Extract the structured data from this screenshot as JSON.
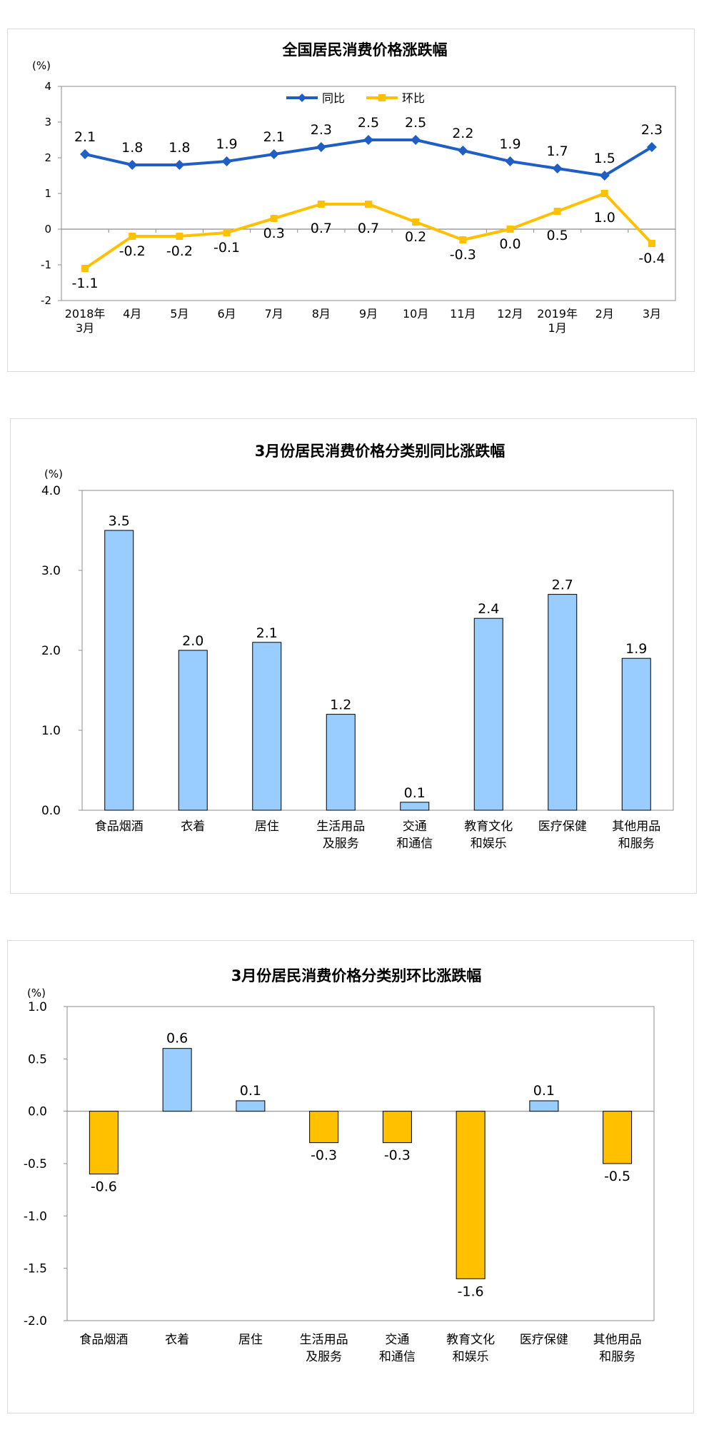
{
  "chart_data": [
    {
      "type": "line",
      "title": "全国居民消费价格涨跌幅",
      "unit": "(%)",
      "categories": [
        [
          "2018年",
          "3月"
        ],
        [
          "4月"
        ],
        [
          "5月"
        ],
        [
          "6月"
        ],
        [
          "7月"
        ],
        [
          "8月"
        ],
        [
          "9月"
        ],
        [
          "10月"
        ],
        [
          "11月"
        ],
        [
          "12月"
        ],
        [
          "2019年",
          "1月"
        ],
        [
          "2月"
        ],
        [
          "3月"
        ]
      ],
      "ylim": [
        -2,
        4
      ],
      "yticks": [
        "4",
        "3",
        "2",
        "1",
        "0",
        "-1",
        "-2"
      ],
      "legend_position": "top-center",
      "series": [
        {
          "name": "同比",
          "color": "#1f5fc4",
          "values": [
            2.1,
            1.8,
            1.8,
            1.9,
            2.1,
            2.3,
            2.5,
            2.5,
            2.2,
            1.9,
            1.7,
            1.5,
            2.3
          ],
          "labels": [
            "2.1",
            "1.8",
            "1.8",
            "1.9",
            "2.1",
            "2.3",
            "2.5",
            "2.5",
            "2.2",
            "1.9",
            "1.7",
            "1.5",
            "2.3"
          ]
        },
        {
          "name": "环比",
          "color": "#ffc000",
          "values": [
            -1.1,
            -0.2,
            -0.2,
            -0.1,
            0.3,
            0.7,
            0.7,
            0.2,
            -0.3,
            0.0,
            0.5,
            1.0,
            -0.4
          ],
          "labels": [
            "-1.1",
            "-0.2",
            "-0.2",
            "-0.1",
            "0.3",
            "0.7",
            "0.7",
            "0.2",
            "-0.3",
            "0.0",
            "0.5",
            "1.0",
            "-0.4"
          ]
        }
      ]
    },
    {
      "type": "bar",
      "title": "3月份居民消费价格分类别同比涨跌幅",
      "unit": "(%)",
      "categories": [
        [
          "食品烟酒"
        ],
        [
          "衣着"
        ],
        [
          "居住"
        ],
        [
          "生活用品",
          "及服务"
        ],
        [
          "交通",
          "和通信"
        ],
        [
          "教育文化",
          "和娱乐"
        ],
        [
          "医疗保健"
        ],
        [
          "其他用品",
          "和服务"
        ]
      ],
      "values": [
        3.5,
        2.0,
        2.1,
        1.2,
        0.1,
        2.4,
        2.7,
        1.9
      ],
      "labels": [
        "3.5",
        "2.0",
        "2.1",
        "1.2",
        "0.1",
        "2.4",
        "2.7",
        "1.9"
      ],
      "ylim": [
        0,
        4
      ],
      "yticks": [
        "4.0",
        "3.0",
        "2.0",
        "1.0",
        "0.0"
      ],
      "bar_color": "#99ccff"
    },
    {
      "type": "bar",
      "title": "3月份居民消费价格分类别环比涨跌幅",
      "unit": "(%)",
      "categories": [
        [
          "食品烟酒"
        ],
        [
          "衣着"
        ],
        [
          "居住"
        ],
        [
          "生活用品",
          "及服务"
        ],
        [
          "交通",
          "和通信"
        ],
        [
          "教育文化",
          "和娱乐"
        ],
        [
          "医疗保健"
        ],
        [
          "其他用品",
          "和服务"
        ]
      ],
      "values": [
        -0.6,
        0.6,
        0.1,
        -0.3,
        -0.3,
        -1.6,
        0.1,
        -0.5
      ],
      "labels": [
        "-0.6",
        "0.6",
        "0.1",
        "-0.3",
        "-0.3",
        "-1.6",
        "0.1",
        "-0.5"
      ],
      "ylim": [
        -2,
        1
      ],
      "yticks": [
        "1.0",
        "0.5",
        "0.0",
        "-0.5",
        "-1.0",
        "-1.5",
        "-2.0"
      ],
      "positive_color": "#99ccff",
      "negative_color": "#ffc000"
    }
  ]
}
